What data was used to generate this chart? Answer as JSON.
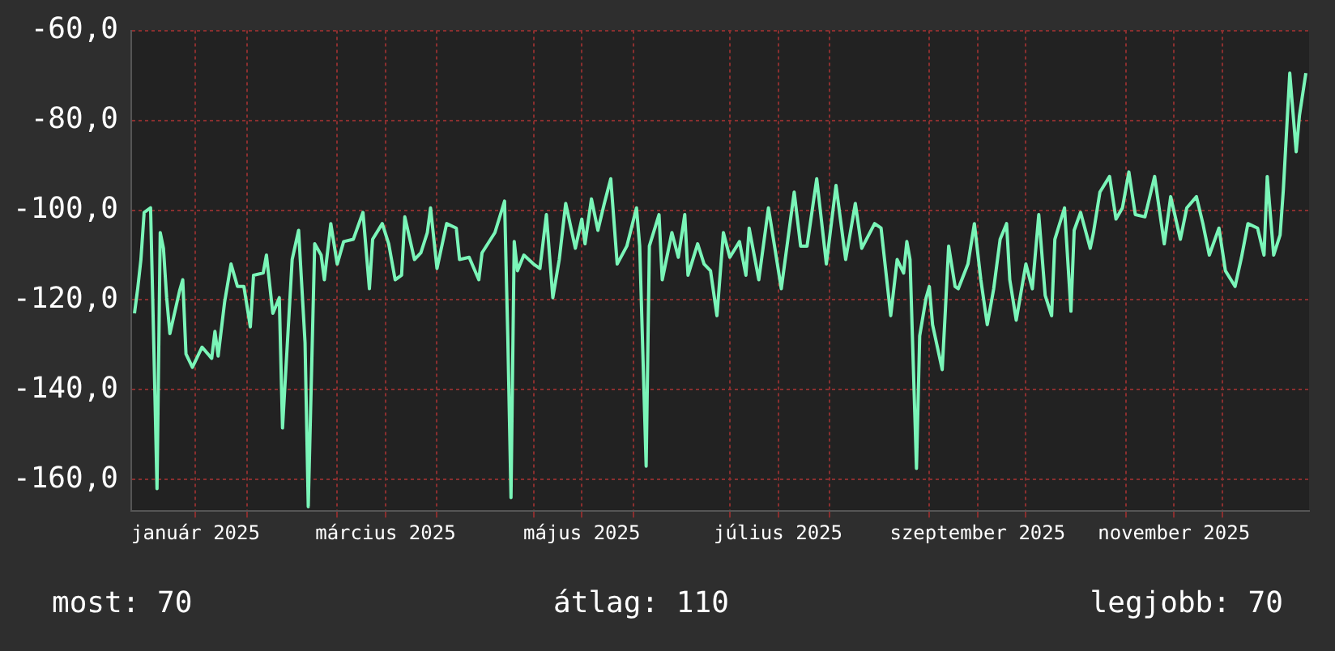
{
  "chart_data": {
    "type": "line",
    "legend": false,
    "grid": true,
    "xlim": [
      "2024-12-27",
      "2025-12-28"
    ],
    "xticks": [
      {
        "value": "2025-01-16",
        "label": "január 2025"
      },
      {
        "value": "2025-02-01",
        "label": null
      },
      {
        "value": "2025-03-01",
        "label": null
      },
      {
        "value": "2025-03-16",
        "label": "március 2025"
      },
      {
        "value": "2025-04-01",
        "label": null
      },
      {
        "value": "2025-05-01",
        "label": null
      },
      {
        "value": "2025-05-16",
        "label": "május 2025"
      },
      {
        "value": "2025-06-01",
        "label": null
      },
      {
        "value": "2025-07-01",
        "label": null
      },
      {
        "value": "2025-07-16",
        "label": "július 2025"
      },
      {
        "value": "2025-08-01",
        "label": null
      },
      {
        "value": "2025-09-01",
        "label": null
      },
      {
        "value": "2025-09-16",
        "label": "szeptember 2025"
      },
      {
        "value": "2025-10-01",
        "label": null
      },
      {
        "value": "2025-11-01",
        "label": null
      },
      {
        "value": "2025-11-16",
        "label": "november 2025"
      },
      {
        "value": "2025-12-01",
        "label": null
      }
    ],
    "ylim": [
      -167,
      -60
    ],
    "yticks": [
      {
        "value": -160,
        "label": "-160,0"
      },
      {
        "value": -140,
        "label": "-140,0"
      },
      {
        "value": -120,
        "label": "-120,0"
      },
      {
        "value": -100,
        "label": "-100,0"
      },
      {
        "value": -80,
        "label": "-80,0"
      },
      {
        "value": -60,
        "label": "-60,0"
      }
    ],
    "x": [
      "2024-12-28",
      "2024-12-29",
      "2024-12-30",
      "2024-12-31",
      "2025-01-02",
      "2025-01-03",
      "2025-01-04",
      "2025-01-05",
      "2025-01-06",
      "2025-01-07",
      "2025-01-08",
      "2025-01-11",
      "2025-01-12",
      "2025-01-13",
      "2025-01-15",
      "2025-01-18",
      "2025-01-21",
      "2025-01-22",
      "2025-01-23",
      "2025-01-25",
      "2025-01-27",
      "2025-01-29",
      "2025-01-31",
      "2025-02-02",
      "2025-02-03",
      "2025-02-06",
      "2025-02-07",
      "2025-02-09",
      "2025-02-11",
      "2025-02-12",
      "2025-02-15",
      "2025-02-17",
      "2025-02-19",
      "2025-02-20",
      "2025-02-22",
      "2025-02-24",
      "2025-02-25",
      "2025-02-27",
      "2025-03-01",
      "2025-03-03",
      "2025-03-06",
      "2025-03-09",
      "2025-03-11",
      "2025-03-12",
      "2025-03-15",
      "2025-03-17",
      "2025-03-19",
      "2025-03-21",
      "2025-03-22",
      "2025-03-25",
      "2025-03-27",
      "2025-03-29",
      "2025-03-30",
      "2025-04-01",
      "2025-04-04",
      "2025-04-07",
      "2025-04-08",
      "2025-04-11",
      "2025-04-14",
      "2025-04-15",
      "2025-04-19",
      "2025-04-22",
      "2025-04-23",
      "2025-04-24",
      "2025-04-25",
      "2025-04-26",
      "2025-04-28",
      "2025-05-01",
      "2025-05-03",
      "2025-05-05",
      "2025-05-07",
      "2025-05-09",
      "2025-05-11",
      "2025-05-14",
      "2025-05-16",
      "2025-05-17",
      "2025-05-19",
      "2025-05-21",
      "2025-05-23",
      "2025-05-25",
      "2025-05-27",
      "2025-05-30",
      "2025-06-02",
      "2025-06-03",
      "2025-06-05",
      "2025-06-06",
      "2025-06-09",
      "2025-06-10",
      "2025-06-13",
      "2025-06-15",
      "2025-06-17",
      "2025-06-18",
      "2025-06-21",
      "2025-06-23",
      "2025-06-25",
      "2025-06-27",
      "2025-06-29",
      "2025-07-01",
      "2025-07-04",
      "2025-07-06",
      "2025-07-07",
      "2025-07-10",
      "2025-07-13",
      "2025-07-15",
      "2025-07-17",
      "2025-07-21",
      "2025-07-23",
      "2025-07-25",
      "2025-07-28",
      "2025-07-31",
      "2025-08-03",
      "2025-08-06",
      "2025-08-09",
      "2025-08-11",
      "2025-08-15",
      "2025-08-17",
      "2025-08-20",
      "2025-08-22",
      "2025-08-24",
      "2025-08-25",
      "2025-08-26",
      "2025-08-28",
      "2025-08-29",
      "2025-08-31",
      "2025-09-01",
      "2025-09-02",
      "2025-09-05",
      "2025-09-06",
      "2025-09-07",
      "2025-09-09",
      "2025-09-10",
      "2025-09-13",
      "2025-09-15",
      "2025-09-17",
      "2025-09-19",
      "2025-09-21",
      "2025-09-23",
      "2025-09-25",
      "2025-09-26",
      "2025-09-28",
      "2025-10-01",
      "2025-10-03",
      "2025-10-05",
      "2025-10-07",
      "2025-10-09",
      "2025-10-10",
      "2025-10-13",
      "2025-10-15",
      "2025-10-16",
      "2025-10-18",
      "2025-10-21",
      "2025-10-22",
      "2025-10-24",
      "2025-10-27",
      "2025-10-29",
      "2025-10-31",
      "2025-11-02",
      "2025-11-04",
      "2025-11-07",
      "2025-11-10",
      "2025-11-13",
      "2025-11-15",
      "2025-11-18",
      "2025-11-20",
      "2025-11-23",
      "2025-11-25",
      "2025-11-27",
      "2025-11-30",
      "2025-12-02",
      "2025-12-05",
      "2025-12-07",
      "2025-12-09",
      "2025-12-12",
      "2025-12-14",
      "2025-12-15",
      "2025-12-17",
      "2025-12-19",
      "2025-12-20",
      "2025-12-22",
      "2025-12-24",
      "2025-12-25",
      "2025-12-27"
    ],
    "series": [
      {
        "color": "#7af5b8",
        "values": [
          -123,
          -117.5,
          -111,
          -100.5,
          -99.5,
          -130,
          -162,
          -105,
          -108.5,
          -119.5,
          -127.5,
          -118,
          -115.5,
          -132,
          -135,
          -130.5,
          -133,
          -127,
          -132.5,
          -120.5,
          -112,
          -117,
          -117,
          -126,
          -114.5,
          -114,
          -110,
          -123,
          -119.5,
          -148.5,
          -111,
          -104.5,
          -129.5,
          -166,
          -107.5,
          -110,
          -115.5,
          -103,
          -112,
          -107,
          -106.5,
          -100.5,
          -117.5,
          -106.5,
          -103,
          -107.5,
          -115.5,
          -114.5,
          -101.5,
          -111,
          -109.5,
          -105,
          -99.5,
          -113,
          -103,
          -104,
          -111,
          -110.5,
          -115.5,
          -109.5,
          -105,
          -98,
          -128,
          -164,
          -107,
          -113.5,
          -110,
          -112,
          -113,
          -101,
          -119.5,
          -111,
          -98.5,
          -108.5,
          -102,
          -107.5,
          -97.5,
          -104.5,
          -98.5,
          -93,
          -112,
          -108,
          -99.5,
          -108,
          -157,
          -108,
          -101,
          -115.5,
          -105,
          -110.5,
          -101,
          -114.5,
          -107.5,
          -112,
          -113.5,
          -123.5,
          -105,
          -110.5,
          -107,
          -114.5,
          -104,
          -115.5,
          -99.5,
          -108.5,
          -117.5,
          -96,
          -108,
          -108,
          -93,
          -112,
          -94.5,
          -111,
          -98.5,
          -108.5,
          -103,
          -104,
          -123.5,
          -111,
          -114,
          -107,
          -111,
          -157.5,
          -128,
          -119.5,
          -117,
          -125.5,
          -135.5,
          -122,
          -108,
          -117,
          -117.5,
          -112,
          -103,
          -115.5,
          -125.5,
          -117.5,
          -106.5,
          -103,
          -115.5,
          -124.5,
          -112,
          -117.5,
          -101,
          -119,
          -123.5,
          -106.5,
          -99.5,
          -122.5,
          -104.5,
          -100.5,
          -108.5,
          -105,
          -96,
          -92.5,
          -102,
          -99.5,
          -91.5,
          -101,
          -101.5,
          -92.5,
          -107.5,
          -97,
          -106.5,
          -99.5,
          -97,
          -103,
          -110,
          -104,
          -113.5,
          -117,
          -110.5,
          -103,
          -104,
          -110,
          -92.5,
          -110,
          -105.5,
          -95.5,
          -69.5,
          -87,
          -79,
          -69.5
        ]
      }
    ],
    "annotations": [
      "most: 70",
      "átlag: 110",
      "legjobb: 70"
    ]
  }
}
